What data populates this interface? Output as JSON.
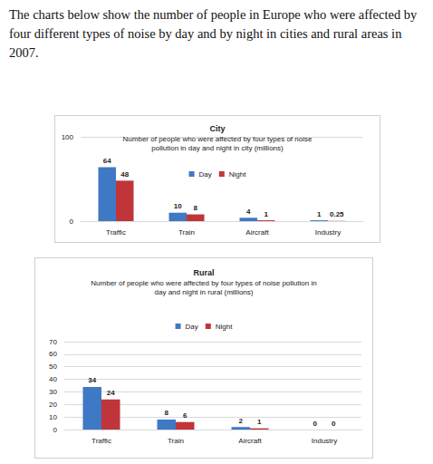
{
  "intro": "The charts below show the number of people in Europe who were affected by four different types of noise by day and by night in cities and rural areas in 2007.",
  "chart_data": [
    {
      "type": "bar",
      "title": "City",
      "subtitle": "Number of people who were affected by four types of noise\npollution in day and night in city (millions)",
      "categories": [
        "Traffic",
        "Train",
        "Aircraft",
        "Industry"
      ],
      "series": [
        {
          "name": "Day",
          "color": "#3f78c4",
          "values": [
            64,
            10,
            4,
            1
          ]
        },
        {
          "name": "Night",
          "color": "#c0353a",
          "values": [
            48,
            8,
            1,
            0.25
          ]
        }
      ],
      "ylim": [
        0,
        100
      ],
      "yticks": [
        0,
        100
      ],
      "grid": true,
      "legend": "top",
      "data_labels": true
    },
    {
      "type": "bar",
      "title": "Rural",
      "subtitle": "Number of people who were affected by four types of noise pollution in\nday and night in rural (millions)",
      "categories": [
        "Traffic",
        "Train",
        "Aircraft",
        "Industry"
      ],
      "series": [
        {
          "name": "Day",
          "color": "#3f78c4",
          "values": [
            34,
            8,
            2,
            0
          ]
        },
        {
          "name": "Night",
          "color": "#c0353a",
          "values": [
            24,
            6,
            1,
            0
          ]
        }
      ],
      "ylim": [
        0,
        70
      ],
      "yticks": [
        0,
        10,
        20,
        30,
        40,
        50,
        60,
        70
      ],
      "grid": true,
      "legend": "top",
      "data_labels": true
    }
  ]
}
